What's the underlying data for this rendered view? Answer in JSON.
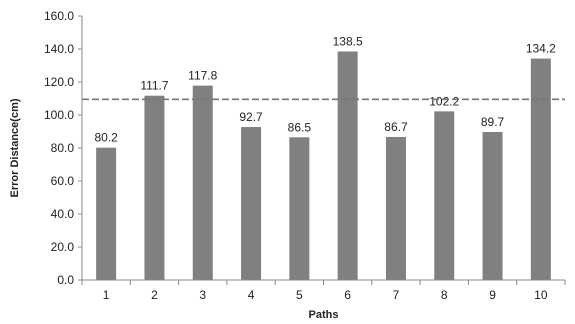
{
  "chart_data": {
    "type": "bar",
    "title": "",
    "xlabel": "Paths",
    "ylabel": "Error Distance(cm)",
    "categories": [
      "1",
      "2",
      "3",
      "4",
      "5",
      "6",
      "7",
      "8",
      "9",
      "10"
    ],
    "values": [
      80.2,
      111.7,
      117.8,
      92.7,
      86.5,
      138.5,
      86.7,
      102.2,
      89.7,
      134.2
    ],
    "value_labels": [
      "80.2",
      "111.7",
      "117.8",
      "92.7",
      "86.5",
      "138.5",
      "86.7",
      "102.2",
      "89.7",
      "134.2"
    ],
    "ylim": [
      0,
      160
    ],
    "yticks": [
      "0.0",
      "20.0",
      "40.0",
      "60.0",
      "80.0",
      "100.0",
      "120.0",
      "140.0",
      "160.0"
    ],
    "reference_line": {
      "value": 109.5,
      "style": "dashed"
    },
    "grid": false,
    "legend": "none",
    "colors": {
      "bar": "#808080",
      "reference_line": "#777777",
      "axis": "#888888"
    }
  }
}
